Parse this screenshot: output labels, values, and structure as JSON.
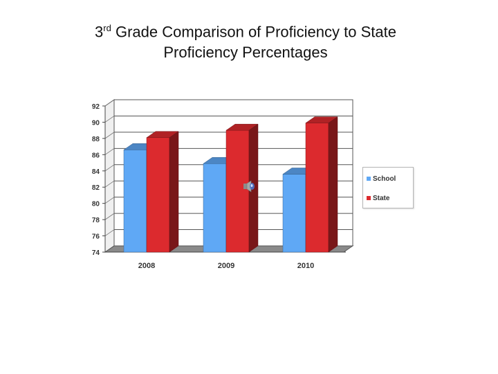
{
  "title": {
    "ordinal_num": "3",
    "ordinal_suffix": "rd",
    "line1_rest": " Grade Comparison of Proficiency to State",
    "line2": "Proficiency Percentages"
  },
  "colors": {
    "school": "#5fa8f5",
    "state": "#dc2a2e"
  },
  "chart_data": {
    "type": "bar",
    "categories": [
      "2008",
      "2009",
      "2010"
    ],
    "series": [
      {
        "name": "School",
        "values": [
          86.6,
          84.9,
          83.6
        ]
      },
      {
        "name": "State",
        "values": [
          88.1,
          89.0,
          89.9
        ]
      }
    ],
    "ylim": [
      74,
      92
    ],
    "yticks": [
      "74",
      "76",
      "78",
      "80",
      "82",
      "84",
      "86",
      "88",
      "90",
      "92"
    ],
    "grid": true,
    "legend_position": "right",
    "style": "3d"
  }
}
